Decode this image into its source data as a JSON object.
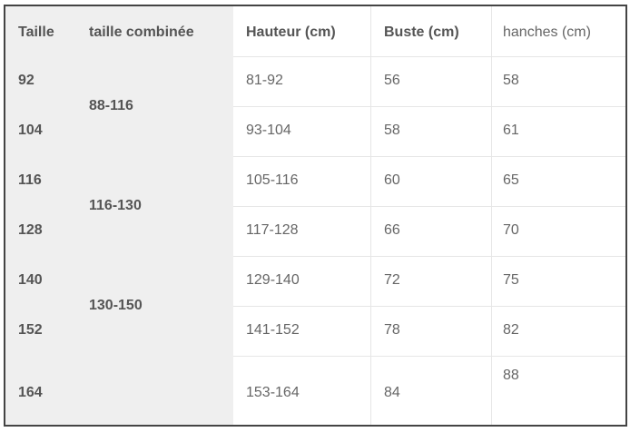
{
  "headers": [
    "Taille",
    "taille combinée",
    "Hauteur (cm)",
    "Buste (cm)",
    "hanches (cm)"
  ],
  "sizes": [
    "92",
    "104",
    "116",
    "128",
    "140",
    "152",
    "164"
  ],
  "combined": [
    "88-116",
    "116-130",
    "130-150"
  ],
  "rows": [
    {
      "hauteur": "81-92",
      "buste": "56",
      "hanches": "58"
    },
    {
      "hauteur": "93-104",
      "buste": "58",
      "hanches": "61"
    },
    {
      "hauteur": "105-116",
      "buste": "60",
      "hanches": "65"
    },
    {
      "hauteur": "117-128",
      "buste": "66",
      "hanches": "70"
    },
    {
      "hauteur": "129-140",
      "buste": "72",
      "hanches": "75"
    },
    {
      "hauteur": "141-152",
      "buste": "78",
      "hanches": "82"
    },
    {
      "hauteur": "153-164",
      "buste": "84",
      "hanches": "88"
    }
  ]
}
